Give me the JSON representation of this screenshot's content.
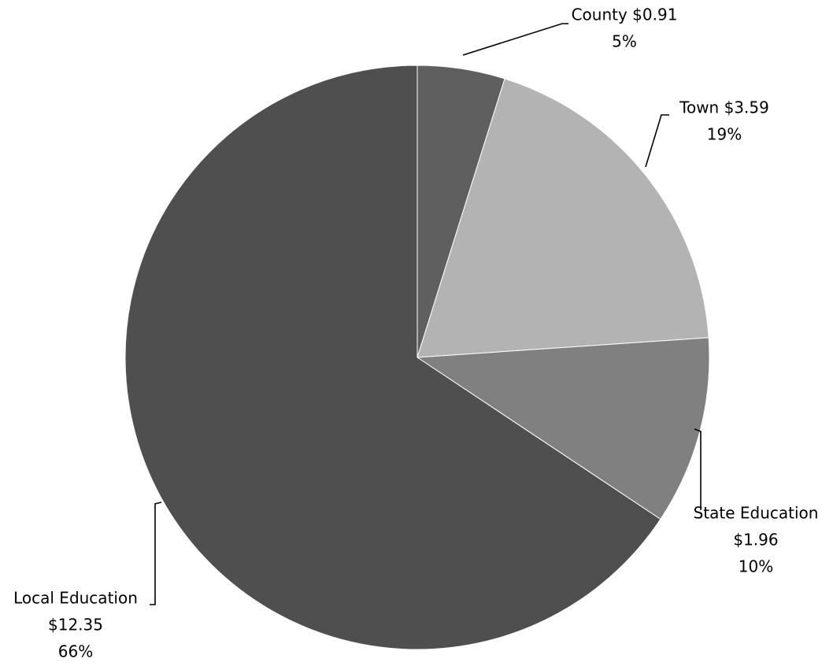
{
  "chart_data": {
    "type": "pie",
    "categories": [
      "County",
      "Town",
      "State Education",
      "Local Education"
    ],
    "values": [
      0.91,
      3.59,
      1.96,
      12.35
    ],
    "percents": [
      "5%",
      "19%",
      "10%",
      "66%"
    ],
    "colors": [
      "#5f5f5f",
      "#b3b3b3",
      "#808080",
      "#4f4f4f"
    ],
    "legend": "none",
    "slices": [
      {
        "category": "County",
        "value": 0.91,
        "label_lines": [
          "County $0.91",
          "5%"
        ]
      },
      {
        "category": "Town",
        "value": 3.59,
        "label_lines": [
          "Town $3.59",
          "19%"
        ]
      },
      {
        "category": "State Education",
        "value": 1.96,
        "label_lines": [
          "State Education",
          "$1.96",
          "10%"
        ]
      },
      {
        "category": "Local Education",
        "value": 12.35,
        "label_lines": [
          "Local Education",
          "$12.35",
          "66%"
        ]
      }
    ]
  }
}
